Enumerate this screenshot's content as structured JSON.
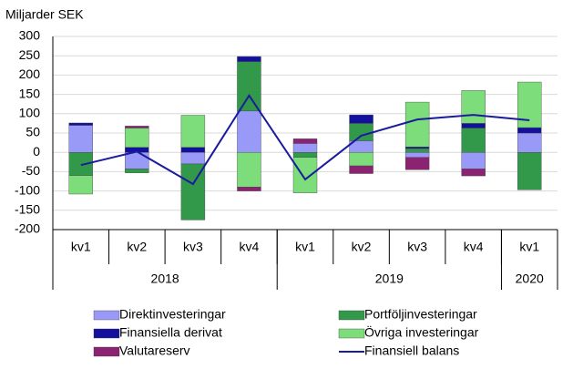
{
  "chart_data": {
    "type": "stacked-bar-line",
    "y_label": "Miljarder SEK",
    "categories": [
      "kv1",
      "kv2",
      "kv3",
      "kv4",
      "kv1",
      "kv2",
      "kv3",
      "kv4",
      "kv1"
    ],
    "groups": [
      {
        "name": "2018",
        "size": 4
      },
      {
        "name": "2019",
        "size": 4
      },
      {
        "name": "2020",
        "size": 1
      }
    ],
    "ylim": [
      -200,
      300
    ],
    "yticks": [
      -200,
      -150,
      -100,
      -50,
      0,
      50,
      100,
      150,
      200,
      250,
      300
    ],
    "grid": true,
    "series": [
      {
        "name": "Direktinvesteringar",
        "color": "#9999f7",
        "values": [
          70,
          -43,
          -30,
          107,
          23,
          30,
          -13,
          -43,
          50
        ]
      },
      {
        "name": "Portföljinvesteringar",
        "color": "#33994a",
        "values": [
          -60,
          -10,
          -145,
          128,
          -13,
          45,
          10,
          63,
          -97
        ]
      },
      {
        "name": "Finansiella derivat",
        "color": "#12109c",
        "values": [
          6,
          13,
          13,
          13,
          0,
          22,
          4,
          12,
          14
        ]
      },
      {
        "name": "Övriga investeringar",
        "color": "#7ddd7a",
        "values": [
          -48,
          50,
          83,
          -90,
          -92,
          -35,
          116,
          85,
          118
        ]
      },
      {
        "name": "Valutareserv",
        "color": "#8b2272",
        "values": [
          0,
          5,
          0,
          -10,
          12,
          -20,
          -32,
          -18,
          0
        ]
      }
    ],
    "line": {
      "name": "Finansiell balans",
      "color": "#1b1b9e",
      "values": [
        -33,
        2,
        -82,
        147,
        -70,
        43,
        85,
        97,
        83
      ]
    }
  }
}
